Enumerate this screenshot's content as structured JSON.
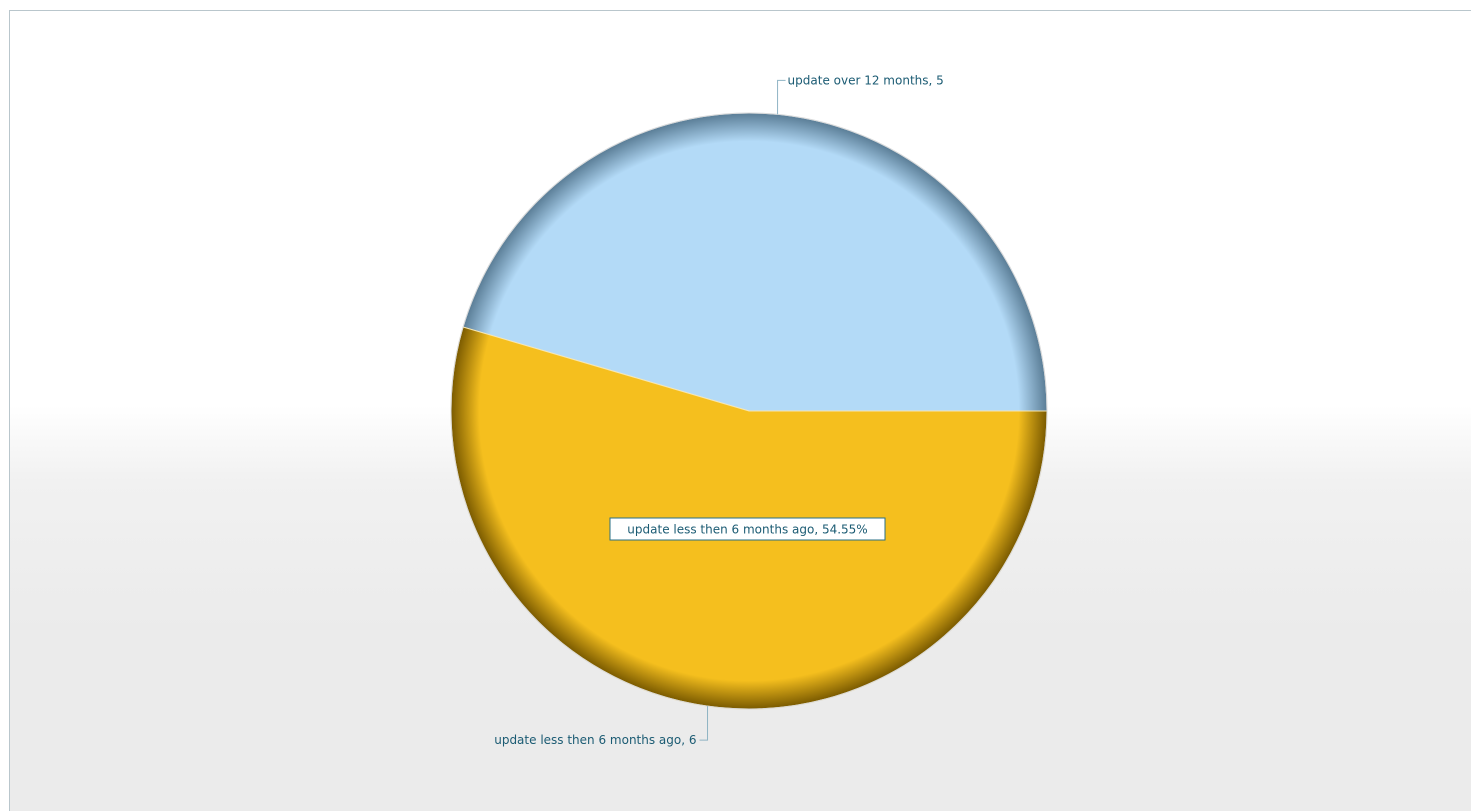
{
  "chart_data": {
    "type": "pie",
    "slices": [
      {
        "label": "update over 12 months",
        "value": 5,
        "color": "#b3daf7",
        "shade": "#5a7d96",
        "data_label": "update over 12 months, 5"
      },
      {
        "label": "update less then 6 months ago",
        "value": 6,
        "color": "#f5bf1e",
        "shade": "#7a5a00",
        "data_label": "update less then 6 months ago, 6"
      }
    ],
    "tooltip": "update less then 6 months ago, 54.55%"
  }
}
